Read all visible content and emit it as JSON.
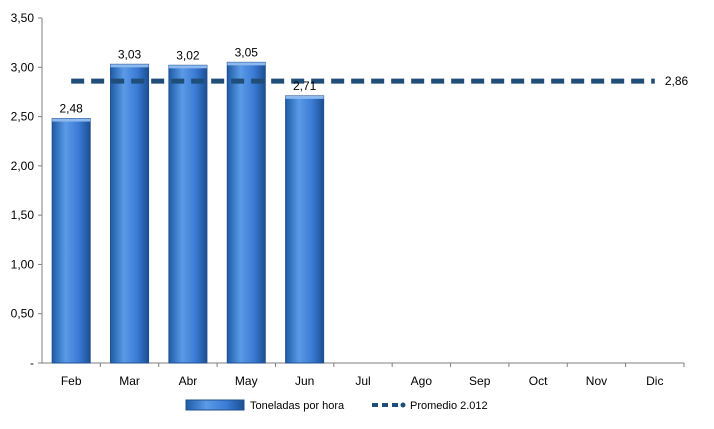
{
  "chart_data": {
    "type": "bar",
    "categories": [
      "Feb",
      "Mar",
      "Abr",
      "May",
      "Jun",
      "Jul",
      "Ago",
      "Sep",
      "Oct",
      "Nov",
      "Dic"
    ],
    "series": [
      {
        "name": "Toneladas por hora",
        "type": "bar",
        "values": [
          2.48,
          3.03,
          3.02,
          3.05,
          2.71,
          null,
          null,
          null,
          null,
          null,
          null
        ],
        "labels": [
          "2,48",
          "3,03",
          "3,02",
          "3,05",
          "2,71"
        ]
      },
      {
        "name": "Promedio 2.012",
        "type": "line",
        "style": "dashed",
        "value": 2.86,
        "label": "2,86"
      }
    ],
    "yticks": [
      0,
      0.5,
      1.0,
      1.5,
      2.0,
      2.5,
      3.0,
      3.5
    ],
    "ytick_labels": [
      "-",
      "0,50",
      "1,00",
      "1,50",
      "2,00",
      "2,50",
      "3,00",
      "3,50"
    ],
    "ylim": [
      0,
      3.5
    ],
    "grid": false,
    "legend": "bottom-center",
    "colors": {
      "bar": "#3a7bd5",
      "bar_dark": "#1f4f8f",
      "line": "#1f4e79"
    }
  }
}
